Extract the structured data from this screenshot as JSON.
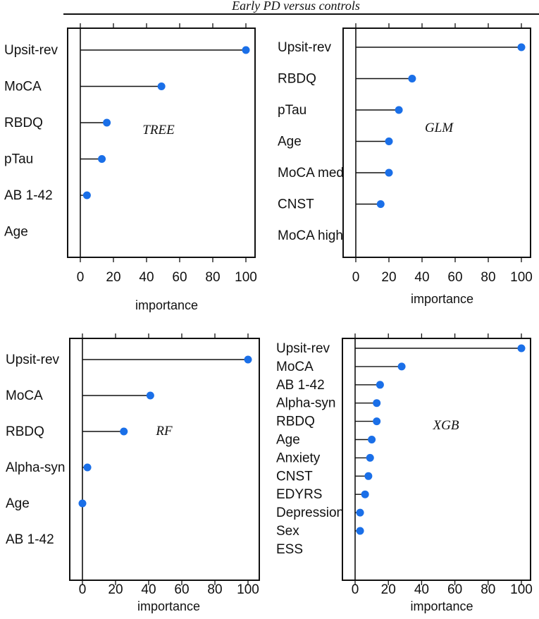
{
  "figure": {
    "title": "Early PD versus controls"
  },
  "colors": {
    "dot": "#1a6fe8",
    "line": "#111111"
  },
  "chart_data": [
    {
      "type": "lollipop",
      "model": "TREE",
      "xlabel": "importance",
      "xlim": [
        0,
        100
      ],
      "ticks": [
        "0",
        "20",
        "40",
        "60",
        "80",
        "100"
      ],
      "categories": [
        "Upsit-rev",
        "MoCA",
        "RBDQ",
        "pTau",
        "AB 1-42",
        "Age"
      ],
      "values": [
        100,
        49,
        16,
        13,
        4,
        null
      ]
    },
    {
      "type": "lollipop",
      "model": "GLM",
      "xlabel": "importance",
      "xlim": [
        0,
        100
      ],
      "ticks": [
        "0",
        "20",
        "40",
        "60",
        "80",
        "100"
      ],
      "categories": [
        "Upsit-rev",
        "RBDQ",
        "pTau",
        "Age",
        "MoCA med",
        "CNST",
        "MoCA high"
      ],
      "values": [
        100,
        34,
        26,
        20,
        20,
        15,
        null
      ]
    },
    {
      "type": "lollipop",
      "model": "RF",
      "xlabel": "importance",
      "xlim": [
        0,
        100
      ],
      "ticks": [
        "0",
        "20",
        "40",
        "60",
        "80",
        "100"
      ],
      "categories": [
        "Upsit-rev",
        "MoCA",
        "RBDQ",
        "Alpha-syn",
        "Age",
        "AB 1-42"
      ],
      "values": [
        100,
        41,
        25,
        3,
        0,
        null
      ]
    },
    {
      "type": "lollipop",
      "model": "XGB",
      "xlabel": "importance",
      "xlim": [
        0,
        100
      ],
      "ticks": [
        "0",
        "20",
        "40",
        "60",
        "80",
        "100"
      ],
      "categories": [
        "Upsit-rev",
        "MoCA",
        "AB 1-42",
        "Alpha-syn",
        "RBDQ",
        "Age",
        "Anxiety",
        "CNST",
        "EDYRS",
        "Depression",
        "Sex",
        "ESS"
      ],
      "values": [
        100,
        28,
        15,
        13,
        13,
        10,
        9,
        8,
        6,
        3,
        3,
        null
      ]
    }
  ]
}
